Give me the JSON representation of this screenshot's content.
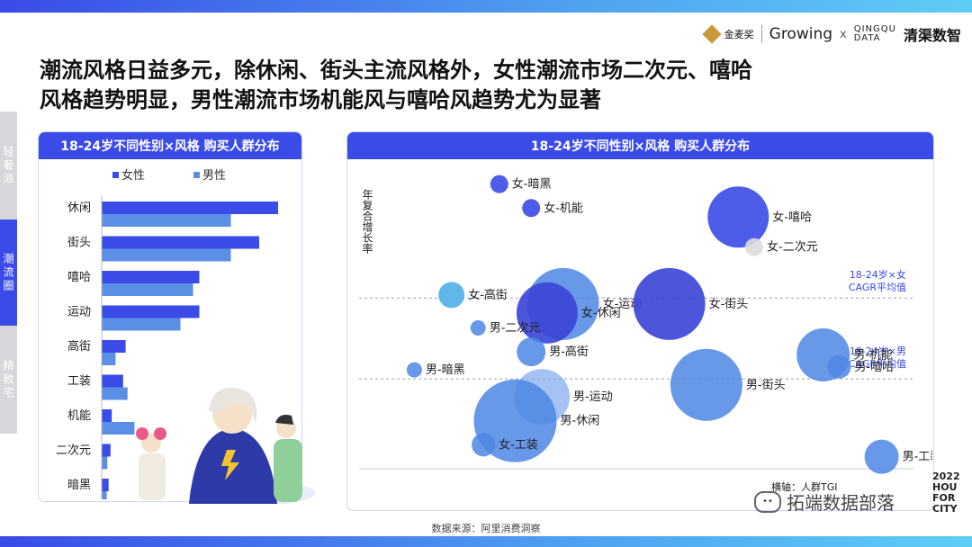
{
  "logos": {
    "logo1": "金麦奖",
    "logo2": "Growing",
    "times": "x",
    "logo3a": "QINGQU",
    "logo3b": "DATA",
    "logo4": "清渠数智"
  },
  "title": {
    "line1": "潮流风格日益多元，除休闲、街头主流风格外，女性潮流市场二次元、嘻哈",
    "line2": "风格趋势明显，男性潮流市场机能风与嘻哈风趋势尤为显著"
  },
  "side_tabs": [
    "轻奢派",
    "潮流圈",
    "精致宅"
  ],
  "left_panel": {
    "title": "18-24岁不同性别×风格 购买人群分布"
  },
  "right_panel": {
    "title": "18-24岁不同性别×风格 购买人群分布",
    "ref_female": "18-24岁×女\nCAGR平均值",
    "ref_male": "18-24岁×男\nCAGR平均值",
    "x_note": "横轴：人群TGI",
    "year_note": "2022\nHOU\nFOR\nCITY"
  },
  "source": "数据来源：阿里消费洞察",
  "watermark": "拓端数据部落",
  "colors": {
    "female": "#3a4be8",
    "male": "#5b8fe6",
    "accent": "#3a4be8"
  },
  "chart_data": [
    {
      "type": "bar",
      "title": "18-24岁不同性别×风格 购买人群分布",
      "orientation": "horizontal",
      "categories": [
        "休闲",
        "街头",
        "嘻哈",
        "运动",
        "高街",
        "工装",
        "机能",
        "二次元",
        "暗黑"
      ],
      "series": [
        {
          "name": "女性",
          "values": [
            28,
            25,
            15.5,
            15.5,
            3.8,
            3.4,
            1.6,
            1.4,
            1.1
          ]
        },
        {
          "name": "男性",
          "values": [
            20.5,
            20.5,
            14.5,
            12.5,
            2.2,
            4.1,
            5.2,
            0.9,
            0.8
          ]
        }
      ],
      "xlim": [
        0,
        30
      ]
    },
    {
      "type": "scatter",
      "title": "18-24岁不同性别×风格 购买人群分布",
      "ylabel": "年复合增长率",
      "xlabel": "横轴：人群TGI",
      "points": [
        {
          "label": "女-暗黑",
          "x": 0.22,
          "y": 0.95,
          "size": 4,
          "group": "女"
        },
        {
          "label": "女-机能",
          "x": 0.28,
          "y": 0.87,
          "size": 4,
          "group": "女"
        },
        {
          "label": "女-嘻哈",
          "x": 0.67,
          "y": 0.84,
          "size": 20,
          "group": "女"
        },
        {
          "label": "女-二次元",
          "x": 0.7,
          "y": 0.74,
          "size": 4,
          "group": "other"
        },
        {
          "label": "女-高街",
          "x": 0.13,
          "y": 0.58,
          "size": 7,
          "group": "light"
        },
        {
          "label": "女-运动",
          "x": 0.34,
          "y": 0.55,
          "size": 24,
          "group": "male"
        },
        {
          "label": "女-休闲",
          "x": 0.31,
          "y": 0.52,
          "size": 20,
          "group": "female_dark"
        },
        {
          "label": "女-街头",
          "x": 0.54,
          "y": 0.55,
          "size": 24,
          "group": "female_dark"
        },
        {
          "label": "男-二次元",
          "x": 0.18,
          "y": 0.47,
          "size": 3,
          "group": "male"
        },
        {
          "label": "男-高街",
          "x": 0.28,
          "y": 0.39,
          "size": 8,
          "group": "male"
        },
        {
          "label": "男-暗黑",
          "x": 0.06,
          "y": 0.33,
          "size": 3,
          "group": "male"
        },
        {
          "label": "男-机能",
          "x": 0.83,
          "y": 0.38,
          "size": 17,
          "group": "male"
        },
        {
          "label": "男-嘻哈",
          "x": 0.86,
          "y": 0.34,
          "size": 6,
          "group": "male"
        },
        {
          "label": "男-街头",
          "x": 0.61,
          "y": 0.28,
          "size": 24,
          "group": "male"
        },
        {
          "label": "男-运动",
          "x": 0.3,
          "y": 0.24,
          "size": 18,
          "group": "male_light"
        },
        {
          "label": "男-休闲",
          "x": 0.25,
          "y": 0.16,
          "size": 28,
          "group": "male"
        },
        {
          "label": "女-工装",
          "x": 0.19,
          "y": 0.08,
          "size": 6,
          "group": "male"
        },
        {
          "label": "男-工装",
          "x": 0.94,
          "y": 0.04,
          "size": 10,
          "group": "male"
        }
      ],
      "ref_lines": [
        {
          "label": "18-24岁×女 CAGR平均值",
          "y": 0.57
        },
        {
          "label": "18-24岁×男 CAGR平均值",
          "y": 0.3
        }
      ],
      "xlim": [
        0,
        1
      ],
      "ylim": [
        0,
        1
      ]
    }
  ]
}
